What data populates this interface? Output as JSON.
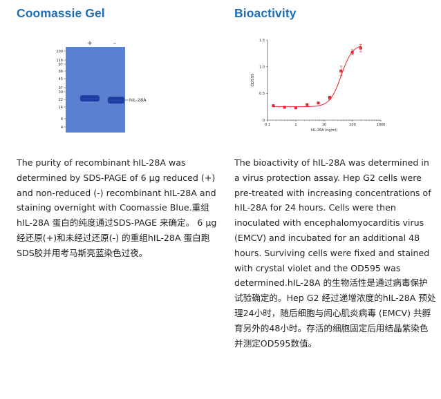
{
  "left": {
    "title": "Coomassie Gel",
    "gel": {
      "lane_labels": [
        "+",
        "–"
      ],
      "markers": [
        "200",
        "116",
        "97",
        "66",
        "45",
        "37",
        "30",
        "22",
        "14",
        "6",
        "4"
      ],
      "band_label": "hIL-28A",
      "background_color": "#5b80cf",
      "band_color": "#1f3fa5"
    },
    "description": "The purity of recombinant hIL-28A was determined by SDS-PAGE of 6 µg reduced (+) and non-reduced (-) recombinant hIL-28A and staining overnight with Coomassie Blue.重组hIL-28A 蛋白的纯度通过SDS-PAGE 来确定。 6 µg 经还原(+)和未经过还原(-) 的重组hIL-28A 蛋白跑SDS胶并用考马斯亮蓝染色过夜。"
  },
  "right": {
    "title": "Bioactivity",
    "description": "The bioactivity of hIL-28A was determined in a virus protection assay. Hep G2 cells were pre-treated with increasing concentrations of hIL-28A for 24 hours. Cells were then inoculated with encephalomyocarditis virus (EMCV) and incubated for an additional 48 hours. Surviving cells were fixed and stained with crystal violet and the OD595 was determined.hIL-28A 的生物活性是通过病毒保护试验确定的。Hep G2 经过递增浓度的hIL-28A 预处理24小时，随后细胞与闹心肌炎病毒 (EMCV) 共孵育另外的48小时。存活的细胞固定后用结晶紫染色并测定OD595数值。"
  },
  "chart_data": {
    "type": "scatter",
    "xlabel": "hIL-28A (ng/ml)",
    "ylabel": "OD595",
    "x_scale": "log",
    "xlim": [
      0.1,
      1000
    ],
    "ylim": [
      0,
      1.5
    ],
    "xticks": [
      0.1,
      1,
      10,
      100,
      1000
    ],
    "xtick_labels": [
      "0.1",
      "1",
      "10",
      "100",
      "1000"
    ],
    "yticks": [
      0,
      0.5,
      1.0,
      1.5
    ],
    "ytick_labels": [
      "0",
      "0.5",
      "1.0",
      "1.5"
    ],
    "points": [
      {
        "x": 0.16,
        "y": 0.27,
        "err": 0.02
      },
      {
        "x": 0.4,
        "y": 0.24,
        "err": 0.02
      },
      {
        "x": 1.0,
        "y": 0.23,
        "err": 0.02
      },
      {
        "x": 2.5,
        "y": 0.29,
        "err": 0.02
      },
      {
        "x": 6.2,
        "y": 0.32,
        "err": 0.02
      },
      {
        "x": 15.6,
        "y": 0.42,
        "err": 0.03
      },
      {
        "x": 39,
        "y": 0.92,
        "err": 0.09
      },
      {
        "x": 98,
        "y": 1.27,
        "err": 0.05
      },
      {
        "x": 195,
        "y": 1.35,
        "err": 0.07
      }
    ],
    "fit_curve": {
      "bottom": 0.25,
      "top": 1.42,
      "ec50": 40,
      "hill": 2.2
    },
    "colors": {
      "series": "#e8242a",
      "axis": "#222222"
    },
    "grid": false
  }
}
